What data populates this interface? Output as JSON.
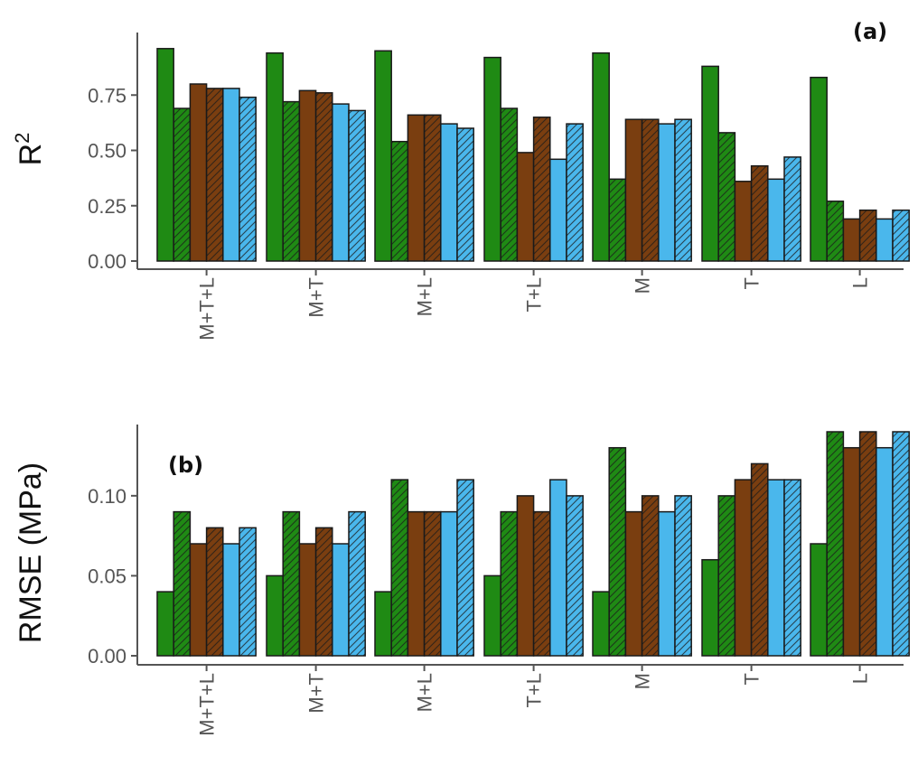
{
  "chart_data": [
    {
      "type": "bar",
      "panel_label": "(a)",
      "ylabel": "R",
      "ylabel_superscript": "2",
      "categories": [
        "M+T+L",
        "M+T",
        "M+L",
        "T+L",
        "M",
        "T",
        "L"
      ],
      "yticks": [
        "0.00",
        "0.25",
        "0.50",
        "0.75"
      ],
      "ylim": [
        0,
        1.0
      ],
      "grid": false,
      "series": [
        {
          "fill": "#1f8a14",
          "hatched": false,
          "values": [
            0.96,
            0.94,
            0.95,
            0.92,
            0.94,
            0.88,
            0.83
          ]
        },
        {
          "fill": "#1f8a14",
          "hatched": true,
          "values": [
            0.69,
            0.72,
            0.54,
            0.69,
            0.37,
            0.58,
            0.27
          ]
        },
        {
          "fill": "#7a3e10",
          "hatched": false,
          "values": [
            0.8,
            0.77,
            0.66,
            0.49,
            0.64,
            0.36,
            0.19
          ]
        },
        {
          "fill": "#7a3e10",
          "hatched": true,
          "values": [
            0.78,
            0.76,
            0.66,
            0.65,
            0.64,
            0.43,
            0.23
          ]
        },
        {
          "fill": "#4ab7ec",
          "hatched": false,
          "values": [
            0.78,
            0.71,
            0.62,
            0.46,
            0.62,
            0.37,
            0.19
          ]
        },
        {
          "fill": "#4ab7ec",
          "hatched": true,
          "values": [
            0.74,
            0.68,
            0.6,
            0.62,
            0.64,
            0.47,
            0.23
          ]
        }
      ]
    },
    {
      "type": "bar",
      "panel_label": "(b)",
      "ylabel": "RMSE (MPa)",
      "categories": [
        "M+T+L",
        "M+T",
        "M+L",
        "T+L",
        "M",
        "T",
        "L"
      ],
      "yticks": [
        "0.00",
        "0.05",
        "0.10"
      ],
      "ylim": [
        0,
        0.14
      ],
      "grid": false,
      "series": [
        {
          "fill": "#1f8a14",
          "hatched": false,
          "values": [
            0.04,
            0.05,
            0.04,
            0.05,
            0.04,
            0.06,
            0.07
          ]
        },
        {
          "fill": "#1f8a14",
          "hatched": true,
          "values": [
            0.09,
            0.09,
            0.11,
            0.09,
            0.13,
            0.1,
            0.14
          ]
        },
        {
          "fill": "#7a3e10",
          "hatched": false,
          "values": [
            0.07,
            0.07,
            0.09,
            0.1,
            0.09,
            0.11,
            0.13
          ]
        },
        {
          "fill": "#7a3e10",
          "hatched": true,
          "values": [
            0.08,
            0.08,
            0.09,
            0.09,
            0.1,
            0.12,
            0.14
          ]
        },
        {
          "fill": "#4ab7ec",
          "hatched": false,
          "values": [
            0.07,
            0.07,
            0.09,
            0.11,
            0.09,
            0.11,
            0.13
          ]
        },
        {
          "fill": "#4ab7ec",
          "hatched": true,
          "values": [
            0.08,
            0.09,
            0.11,
            0.1,
            0.1,
            0.11,
            0.14
          ]
        }
      ]
    }
  ]
}
